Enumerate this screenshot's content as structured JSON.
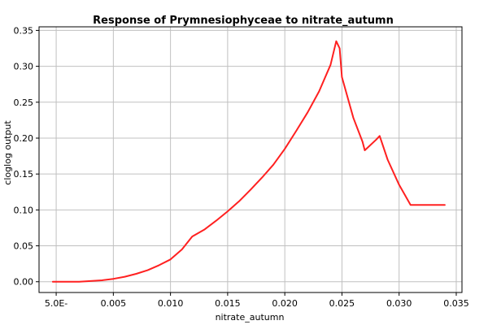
{
  "chart_data": {
    "type": "line",
    "title": "Response of Prymnesiophyceae to nitrate_autumn",
    "xlabel": "nitrate_autumn",
    "ylabel": "cloglog output",
    "xlim": [
      -0.0015,
      0.0355
    ],
    "ylim": [
      -0.015,
      0.355
    ],
    "x_ticks": [
      {
        "value": 0.0,
        "label": "5.0E-"
      },
      {
        "value": 0.005,
        "label": "0.005"
      },
      {
        "value": 0.01,
        "label": "0.010"
      },
      {
        "value": 0.015,
        "label": "0.015"
      },
      {
        "value": 0.02,
        "label": "0.020"
      },
      {
        "value": 0.025,
        "label": "0.025"
      },
      {
        "value": 0.03,
        "label": "0.030"
      },
      {
        "value": 0.035,
        "label": "0.035"
      }
    ],
    "y_ticks": [
      {
        "value": 0.0,
        "label": "0.00"
      },
      {
        "value": 0.05,
        "label": "0.05"
      },
      {
        "value": 0.1,
        "label": "0.10"
      },
      {
        "value": 0.15,
        "label": "0.15"
      },
      {
        "value": 0.2,
        "label": "0.20"
      },
      {
        "value": 0.25,
        "label": "0.25"
      },
      {
        "value": 0.3,
        "label": "0.30"
      },
      {
        "value": 0.35,
        "label": "0.35"
      }
    ],
    "grid": true,
    "series": [
      {
        "color": "#ff2020",
        "x": [
          -0.0003,
          0.002,
          0.004,
          0.005,
          0.006,
          0.007,
          0.008,
          0.009,
          0.01,
          0.011,
          0.0119,
          0.013,
          0.014,
          0.015,
          0.016,
          0.017,
          0.018,
          0.019,
          0.02,
          0.021,
          0.022,
          0.023,
          0.024,
          0.0245,
          0.0248,
          0.025,
          0.026,
          0.0268,
          0.027,
          0.028,
          0.0283,
          0.029,
          0.03,
          0.031,
          0.034
        ],
        "y": [
          0.0,
          0.0,
          0.002,
          0.004,
          0.007,
          0.011,
          0.016,
          0.023,
          0.031,
          0.045,
          0.063,
          0.073,
          0.085,
          0.098,
          0.112,
          0.128,
          0.145,
          0.163,
          0.185,
          0.21,
          0.236,
          0.265,
          0.302,
          0.335,
          0.325,
          0.285,
          0.228,
          0.195,
          0.183,
          0.198,
          0.203,
          0.17,
          0.135,
          0.107,
          0.107
        ]
      }
    ]
  }
}
